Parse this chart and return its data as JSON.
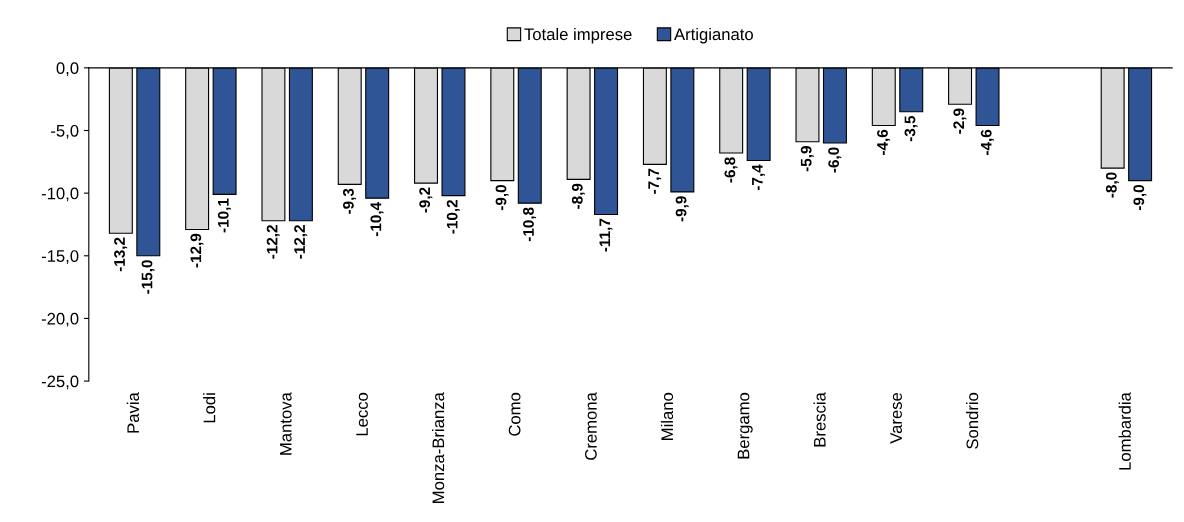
{
  "chart_data": {
    "type": "bar",
    "categories": [
      "Pavia",
      "Lodi",
      "Mantova",
      "Lecco",
      "Monza-Brianza",
      "Como",
      "Cremona",
      "Milano",
      "Bergamo",
      "Brescia",
      "Varese",
      "Sondrio",
      null,
      "Lombardia"
    ],
    "series": [
      {
        "name": "Totale imprese",
        "color": "#d9d9d9",
        "values": [
          -13.2,
          -12.9,
          -12.2,
          -9.3,
          -9.2,
          -9.0,
          -8.9,
          -7.7,
          -6.8,
          -5.9,
          -4.6,
          -2.9,
          null,
          -8.0
        ],
        "value_labels": [
          "-13,2",
          "-12,9",
          "-12,2",
          "-9,3",
          "-9,2",
          "-9,0",
          "-8,9",
          "-7,7",
          "-6,8",
          "-5,9",
          "-4,6",
          "-2,9",
          null,
          "-8,0"
        ]
      },
      {
        "name": "Artigianato",
        "color": "#2f5597",
        "values": [
          -15.0,
          -10.1,
          -12.2,
          -10.4,
          -10.2,
          -10.8,
          -11.7,
          -9.9,
          -7.4,
          -6.0,
          -3.5,
          -4.6,
          null,
          -9.0
        ],
        "value_labels": [
          "-15,0",
          "-10,1",
          "-12,2",
          "-10,4",
          "-10,2",
          "-10,8",
          "-11,7",
          "-9,9",
          "-7,4",
          "-6,0",
          "-3,5",
          "-4,6",
          null,
          "-9,0"
        ]
      }
    ],
    "ylim": [
      -25,
      0
    ],
    "yticks": [
      {
        "value": 0,
        "label": "0,0"
      },
      {
        "value": -5,
        "label": "-5,0"
      },
      {
        "value": -10,
        "label": "-10,0"
      },
      {
        "value": -15,
        "label": "-15,0"
      },
      {
        "value": -20,
        "label": "-20,0"
      },
      {
        "value": -25,
        "label": "-25,0"
      }
    ],
    "legend": "top",
    "grid": false
  }
}
